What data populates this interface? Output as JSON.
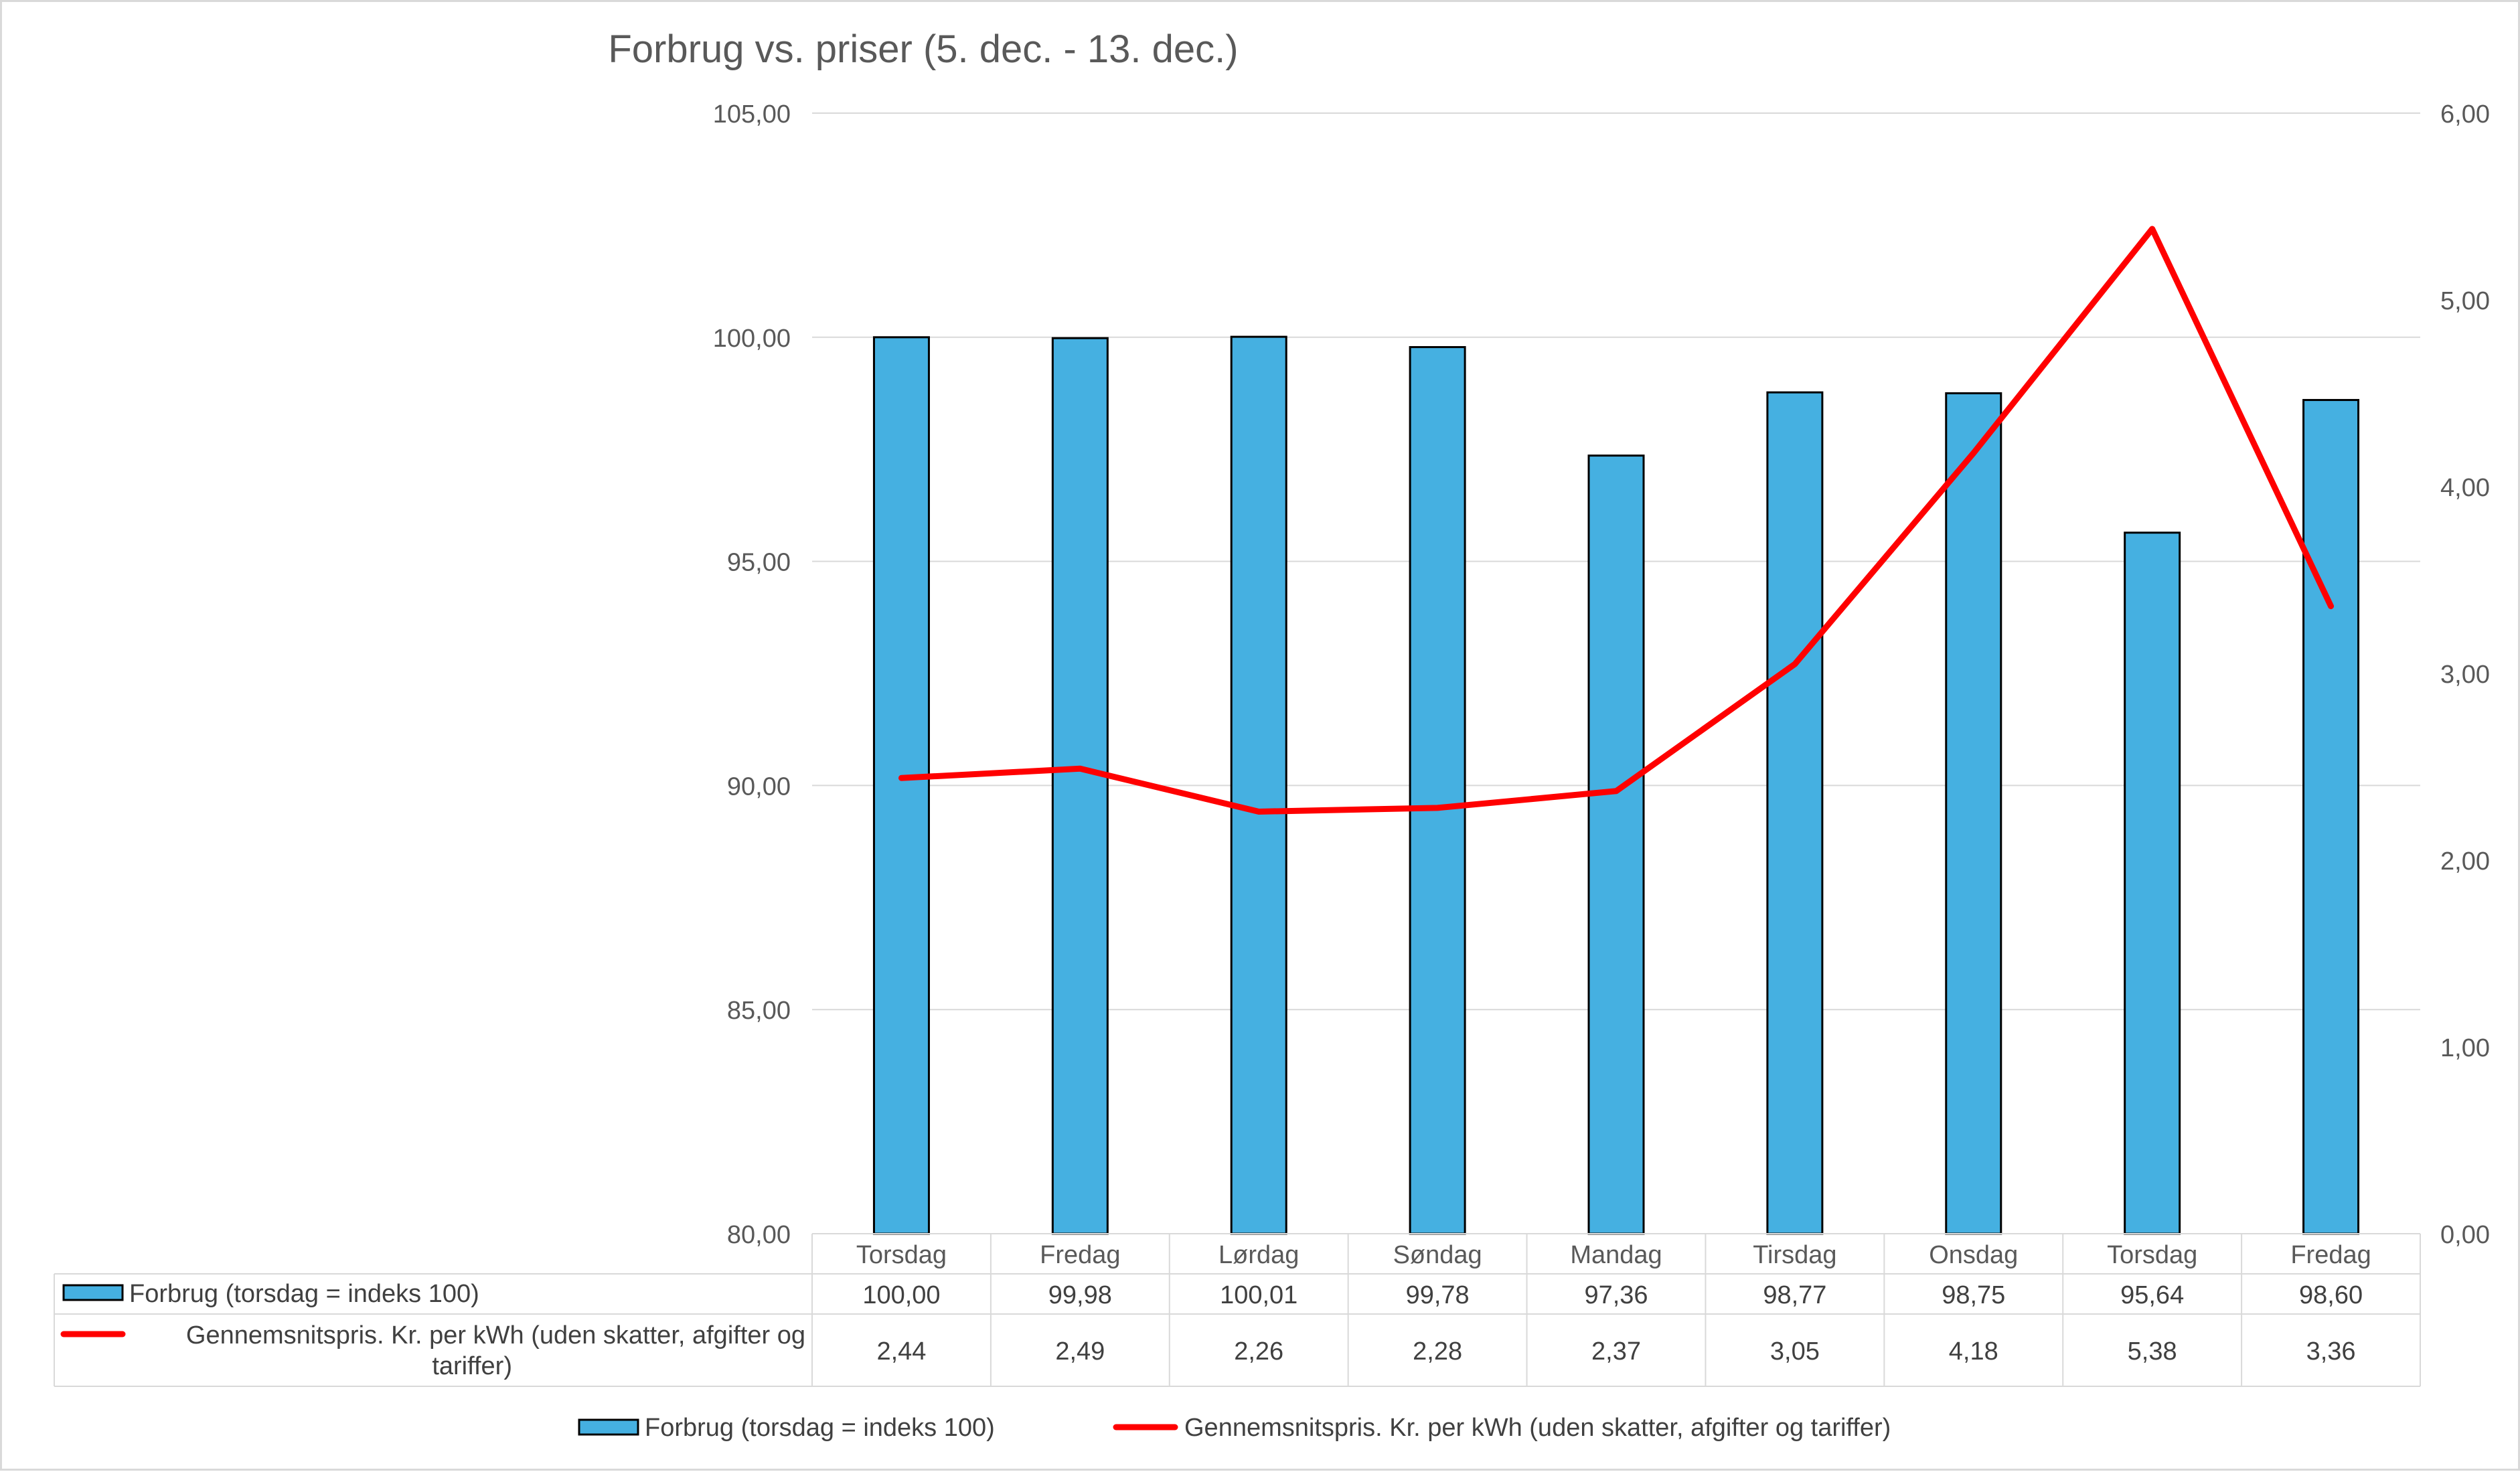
{
  "chart_data": {
    "type": "bar",
    "title": "Forbrug vs. priser (5. dec. - 13. dec.)",
    "categories": [
      "Torsdag",
      "Fredag",
      "Lørdag",
      "Søndag",
      "Mandag",
      "Tirsdag",
      "Onsdag",
      "Torsdag",
      "Fredag"
    ],
    "series": [
      {
        "name": "Forbrug (torsdag = indeks 100)",
        "type": "bar",
        "axis": "left",
        "color": "#45b0e1",
        "values": [
          100.0,
          99.98,
          100.01,
          99.78,
          97.36,
          98.77,
          98.75,
          95.64,
          98.6
        ],
        "labels": [
          "100,00",
          "99,98",
          "100,01",
          "99,78",
          "97,36",
          "98,77",
          "98,75",
          "95,64",
          "98,60"
        ]
      },
      {
        "name": "Gennemsnitspris. Kr. per kWh (uden skatter, afgifter og tariffer)",
        "name_lines": [
          "Gennemsnitspris. Kr. per kWh (uden skatter, afgifter og",
          "tariffer)"
        ],
        "type": "line",
        "axis": "right",
        "color": "#ff0000",
        "values": [
          2.44,
          2.49,
          2.26,
          2.28,
          2.37,
          3.05,
          4.18,
          5.38,
          3.36
        ],
        "labels": [
          "2,44",
          "2,49",
          "2,26",
          "2,28",
          "2,37",
          "3,05",
          "4,18",
          "5,38",
          "3,36"
        ]
      }
    ],
    "y_left": {
      "min": 80,
      "max": 105,
      "ticks": [
        105,
        100,
        95,
        90,
        85,
        80
      ],
      "tick_labels": [
        "105,00",
        "100,00",
        "95,00",
        "90,00",
        "85,00",
        "80,00"
      ]
    },
    "y_right": {
      "min": 0,
      "max": 6,
      "ticks": [
        6,
        5,
        4,
        3,
        2,
        1,
        0
      ],
      "tick_labels": [
        "6,00",
        "5,00",
        "4,00",
        "3,00",
        "2,00",
        "1,00",
        "0,00"
      ]
    },
    "grid": true,
    "data_table": true,
    "legend_position": "bottom"
  }
}
